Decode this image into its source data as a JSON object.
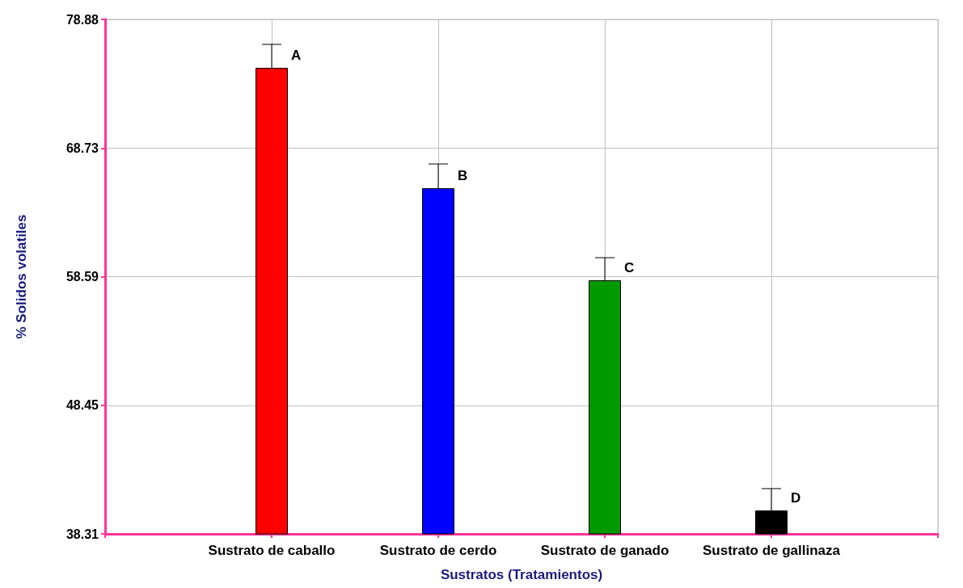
{
  "chart_data": {
    "type": "bar",
    "xlabel": "Sustratos (Tratamientos)",
    "ylabel": "% Solidos volatiles",
    "categories": [
      "Sustrato de caballo",
      "Sustrato de cerdo",
      "Sustrato de ganado",
      "Sustrato de gallinaza"
    ],
    "values": [
      75.06,
      65.57,
      58.31,
      40.16
    ],
    "colors": [
      "#ff0000",
      "#0000ff",
      "#009900",
      "#000000"
    ],
    "errors": [
      [
        75.06,
        76.91
      ],
      [
        65.57,
        67.48
      ],
      [
        58.31,
        60.09
      ],
      [
        40.16,
        41.88
      ]
    ],
    "ylim": [
      38.31,
      78.88
    ],
    "yticks": [
      38.31,
      48.45,
      58.59,
      68.73,
      78.88
    ],
    "grid": true,
    "annotations": [
      {
        "text": "A",
        "x": "Sustrato de caballo",
        "y": 75.06
      },
      {
        "text": "B",
        "x": "Sustrato de cerdo",
        "y": 65.57
      },
      {
        "text": "C",
        "x": "Sustrato de ganado",
        "y": 58.31
      },
      {
        "text": "D",
        "x": "Sustrato de gallinaza",
        "y": 40.16
      }
    ]
  }
}
